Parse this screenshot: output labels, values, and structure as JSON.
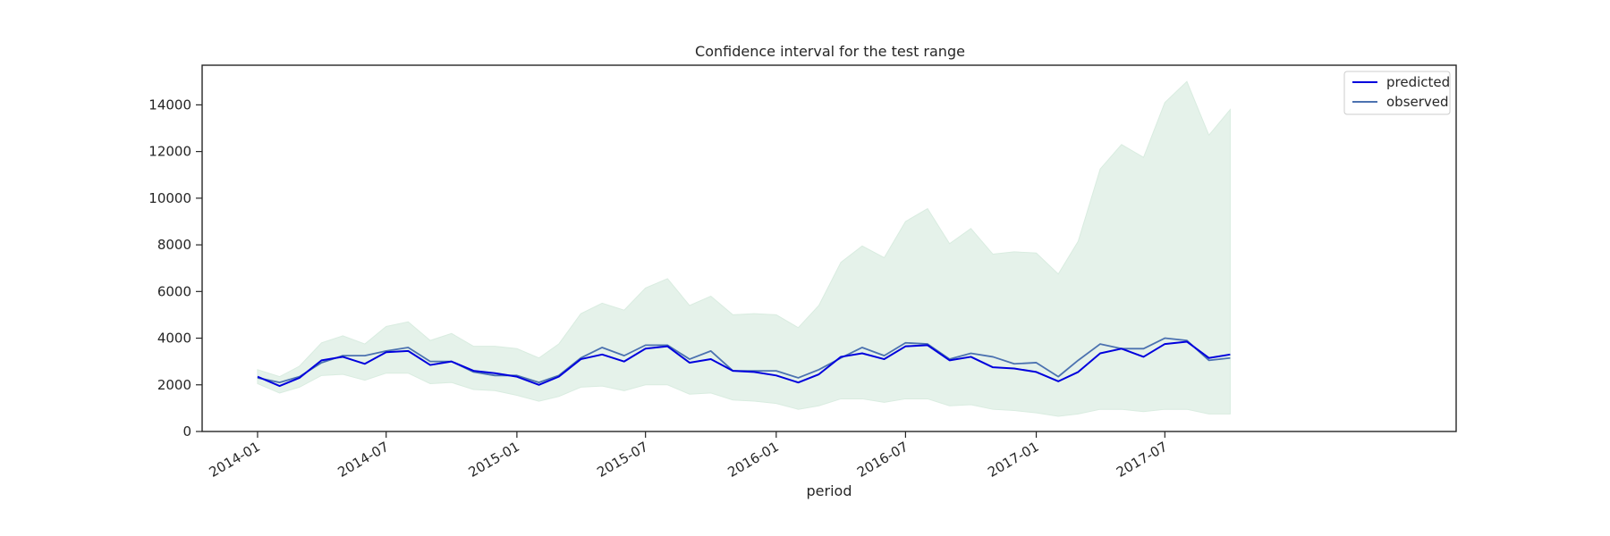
{
  "chart_data": {
    "type": "line",
    "title": "Confidence interval for the test range",
    "xlabel": "period",
    "ylabel": "",
    "x": [
      "2014-01",
      "2014-02",
      "2014-03",
      "2014-04",
      "2014-05",
      "2014-06",
      "2014-07",
      "2014-08",
      "2014-09",
      "2014-10",
      "2014-11",
      "2014-12",
      "2015-01",
      "2015-02",
      "2015-03",
      "2015-04",
      "2015-05",
      "2015-06",
      "2015-07",
      "2015-08",
      "2015-09",
      "2015-10",
      "2015-11",
      "2015-12",
      "2016-01",
      "2016-02",
      "2016-03",
      "2016-04",
      "2016-05",
      "2016-06",
      "2016-07",
      "2016-08",
      "2016-09",
      "2016-10",
      "2016-11",
      "2016-12",
      "2017-01",
      "2017-02",
      "2017-03",
      "2017-04",
      "2017-05",
      "2017-06",
      "2017-07",
      "2017-08",
      "2017-09",
      "2017-10"
    ],
    "xlim": [
      "2013-10-15",
      "2018-08-15"
    ],
    "ylim": [
      0,
      15700
    ],
    "yticks": [
      0,
      2000,
      4000,
      6000,
      8000,
      10000,
      12000,
      14000
    ],
    "yticklabels": [
      "0",
      "2000",
      "4000",
      "6000",
      "8000",
      "10000",
      "12000",
      "14000"
    ],
    "xticks": [
      "2014-01",
      "2014-07",
      "2015-01",
      "2015-07",
      "2016-01",
      "2016-07",
      "2017-01",
      "2017-07"
    ],
    "xticklabels": [
      "2014-01",
      "2014-07",
      "2015-01",
      "2015-07",
      "2016-01",
      "2016-07",
      "2017-01",
      "2017-07"
    ],
    "grid": false,
    "legend_position": "top-right",
    "series": [
      {
        "name": "predicted",
        "color": "#0000dd",
        "values": [
          2350,
          1950,
          2300,
          3050,
          3200,
          2900,
          3400,
          3450,
          2850,
          3000,
          2600,
          2500,
          2350,
          2000,
          2350,
          3100,
          3300,
          3000,
          3550,
          3650,
          2950,
          3100,
          2600,
          2550,
          2400,
          2100,
          2450,
          3200,
          3350,
          3100,
          3650,
          3700,
          3050,
          3200,
          2750,
          2700,
          2550,
          2150,
          2550,
          3350,
          3550,
          3200,
          3750,
          3850,
          3150,
          3300
        ]
      },
      {
        "name": "observed",
        "color": "#4c72b0",
        "values": [
          2300,
          2100,
          2350,
          2950,
          3250,
          3250,
          3450,
          3600,
          3000,
          3000,
          2550,
          2400,
          2400,
          2100,
          2400,
          3150,
          3600,
          3250,
          3700,
          3700,
          3100,
          3450,
          2600,
          2600,
          2600,
          2300,
          2650,
          3150,
          3600,
          3250,
          3800,
          3750,
          3100,
          3350,
          3200,
          2900,
          2950,
          2350,
          3050,
          3750,
          3550,
          3550,
          4000,
          3900,
          3050,
          3150
        ]
      }
    ],
    "confidence_interval": {
      "color": "#e5f2ea",
      "lower": [
        2050,
        1650,
        1900,
        2400,
        2450,
        2200,
        2500,
        2500,
        2050,
        2100,
        1800,
        1750,
        1550,
        1300,
        1500,
        1900,
        1950,
        1750,
        2000,
        2000,
        1600,
        1650,
        1350,
        1300,
        1200,
        950,
        1100,
        1400,
        1400,
        1250,
        1400,
        1400,
        1100,
        1150,
        950,
        900,
        800,
        650,
        750,
        950,
        950,
        850,
        950,
        950,
        750,
        750
      ],
      "upper": [
        2650,
        2350,
        2800,
        3800,
        4100,
        3750,
        4500,
        4700,
        3900,
        4200,
        3650,
        3650,
        3550,
        3150,
        3750,
        5050,
        5500,
        5200,
        6150,
        6550,
        5400,
        5800,
        5000,
        5050,
        5000,
        4450,
        5400,
        7250,
        7950,
        7450,
        9000,
        9550,
        8050,
        8700,
        7600,
        7700,
        7650,
        6750,
        8150,
        11250,
        12300,
        11750,
        14100,
        15000,
        12700,
        13800
      ]
    }
  }
}
